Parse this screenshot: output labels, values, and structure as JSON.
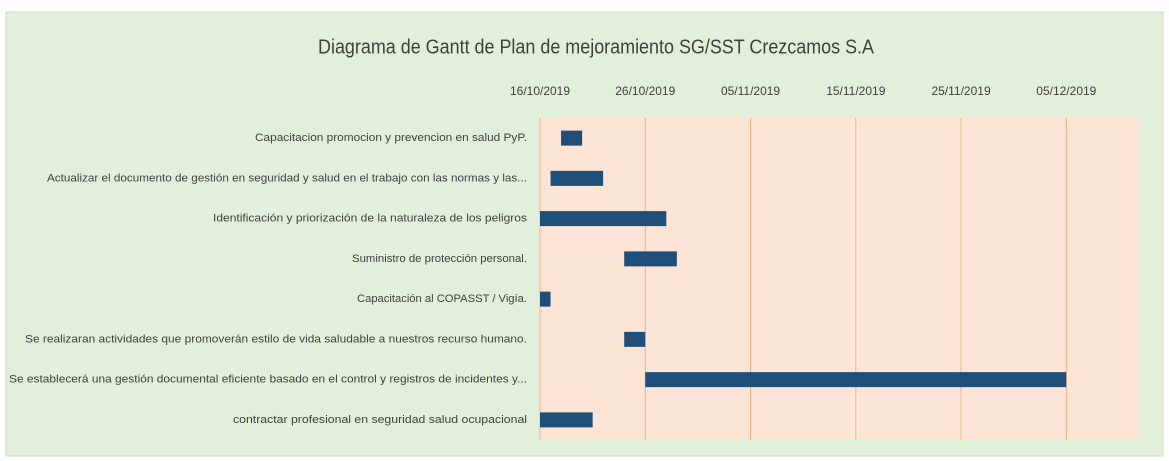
{
  "chart_data": {
    "type": "gantt",
    "title": "Diagrama de Gantt de Plan de mejoramiento SG/SST Crezcamos  S.A",
    "categories": [
      "Capacitacion promocion y prevencion en salud PyP.",
      "Actualizar el documento de gestión en seguridad y salud en el trabajo con las normas y las...",
      "Identificación y priorización de la naturaleza de los peligros",
      "Suministro de protección personal.",
      "Capacitación al COPASST / Vigía.",
      "Se realizaran actividades que promoverán estilo de vida saludable a nuestros recurso humano.",
      "Se establecerá una gestión documental eficiente basado en el control y registros de incidentes y...",
      "contractar profesional en seguridad salud ocupacional"
    ],
    "start": [
      "2019-10-18",
      "2019-10-17",
      "2019-10-16",
      "2019-10-24",
      "2019-10-16",
      "2019-10-24",
      "2019-10-26",
      "2019-10-16"
    ],
    "end": [
      "2019-10-20",
      "2019-10-22",
      "2019-10-28",
      "2019-10-29",
      "2019-10-17",
      "2019-10-26",
      "2019-12-05",
      "2019-10-21"
    ],
    "color": "#1f4e79",
    "xlim": [
      "2019-10-16",
      "2019-12-12"
    ],
    "xticks": [
      {
        "value": "2019-10-16",
        "label": "16/10/2019"
      },
      {
        "value": "2019-10-26",
        "label": "26/10/2019"
      },
      {
        "value": "2019-11-05",
        "label": "05/11/2019"
      },
      {
        "value": "2019-11-15",
        "label": "15/11/2019"
      },
      {
        "value": "2019-11-25",
        "label": "25/11/2019"
      },
      {
        "value": "2019-12-05",
        "label": "05/12/2019"
      }
    ],
    "grid": true
  }
}
